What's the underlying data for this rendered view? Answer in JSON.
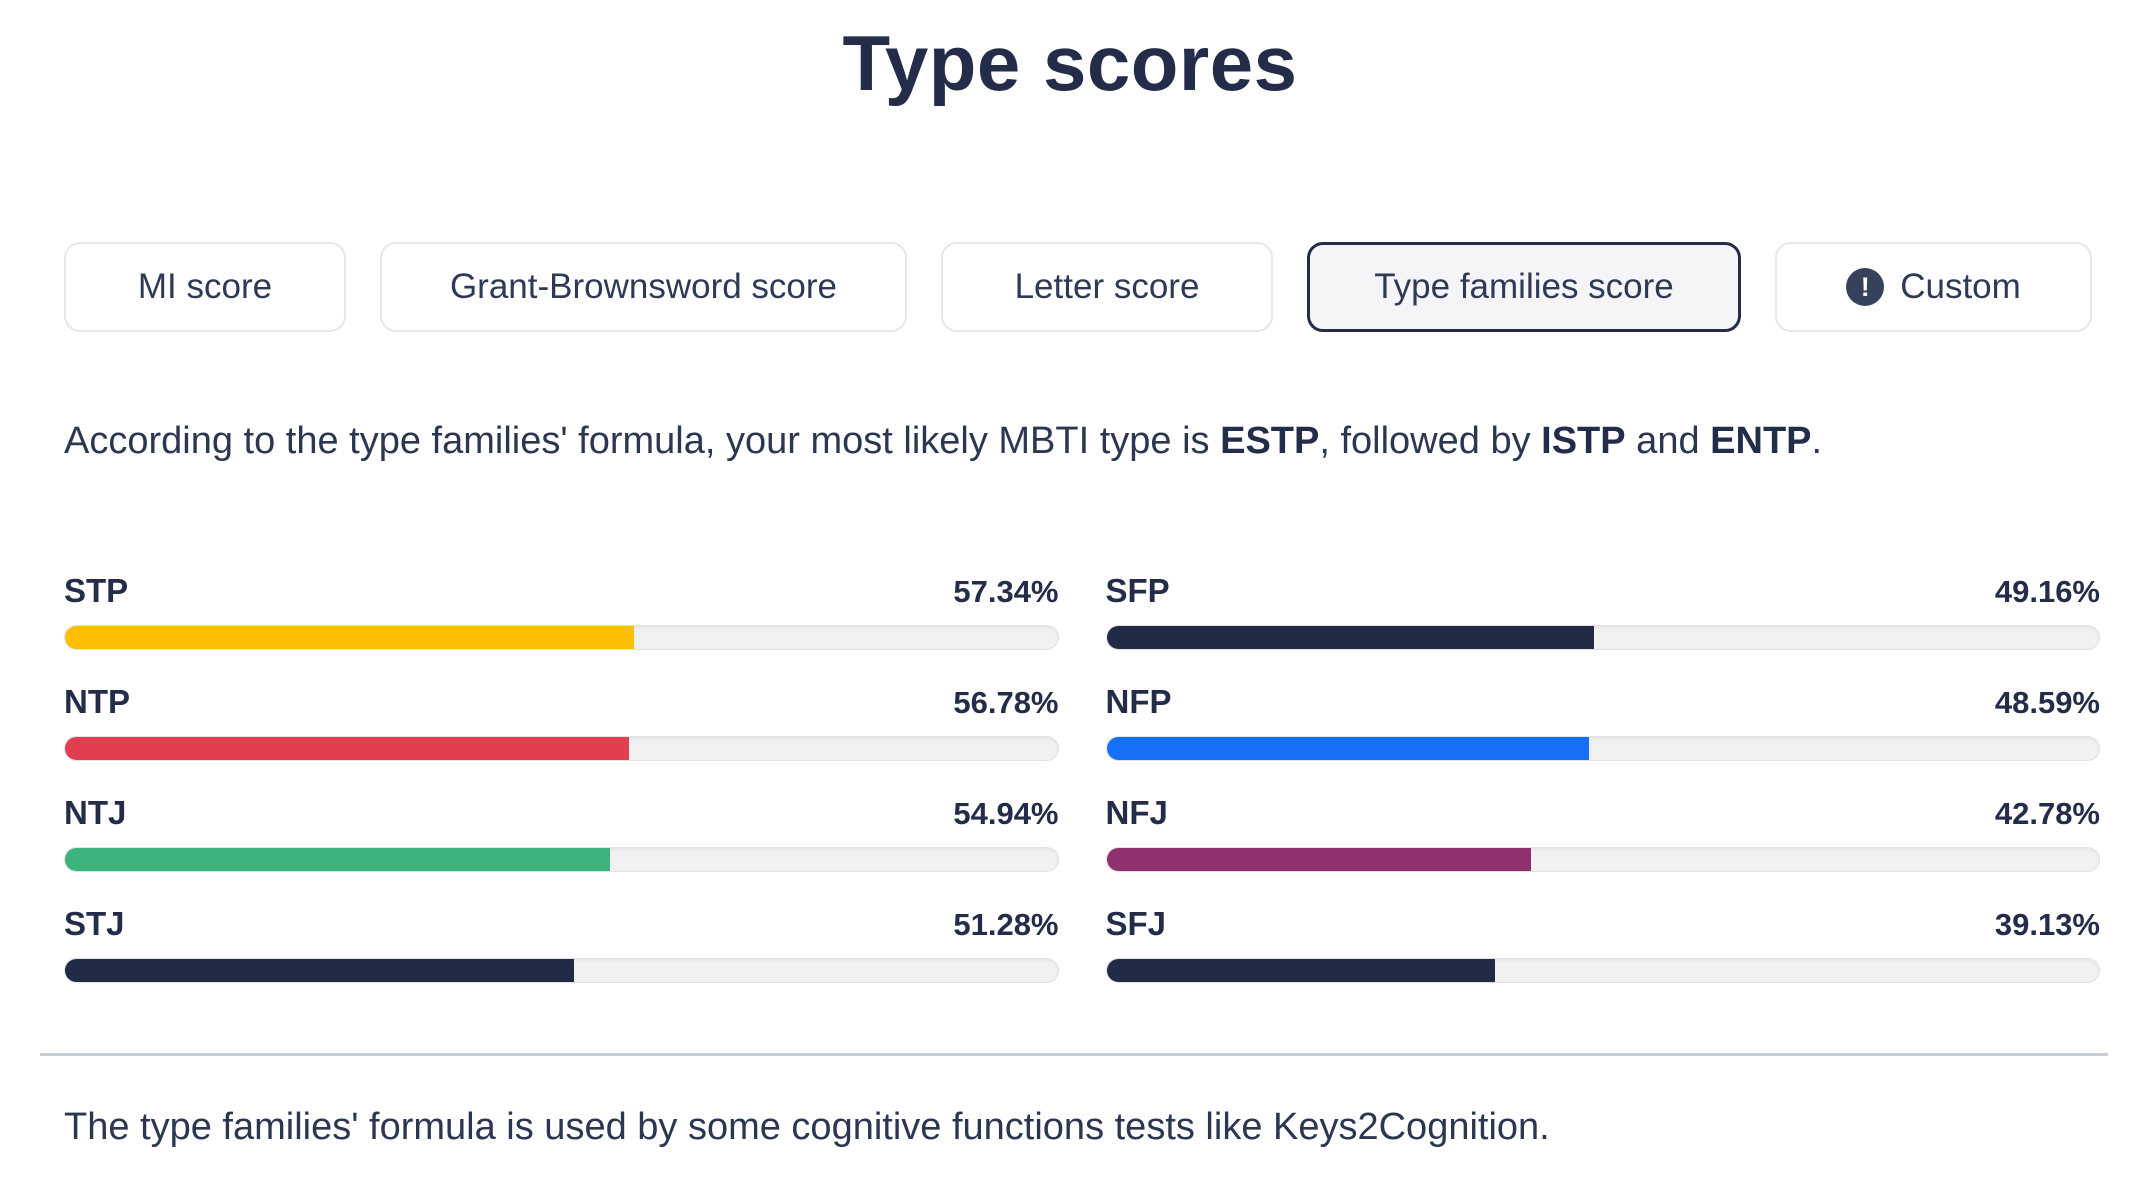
{
  "page": {
    "title": "Type scores"
  },
  "tabs": [
    {
      "label": "MI score",
      "selected": false
    },
    {
      "label": "Grant-Brownsword score",
      "selected": false
    },
    {
      "label": "Letter score",
      "selected": false
    },
    {
      "label": "Type families score",
      "selected": true
    },
    {
      "label": "Custom",
      "selected": false,
      "icon": "exclamation-circle-icon",
      "icon_glyph": "!"
    }
  ],
  "summary": {
    "prefix": "According to the type families' formula, your most likely MBTI type is ",
    "top_type": "ESTP",
    "mid1": ", followed by ",
    "second_type": "ISTP",
    "mid2": " and ",
    "third_type": "ENTP",
    "suffix": "."
  },
  "scores": {
    "left": [
      {
        "label": "STP",
        "percent_label": "57.34%",
        "value": 57.34,
        "color": "#FCBF04"
      },
      {
        "label": "NTP",
        "percent_label": "56.78%",
        "value": 56.78,
        "color": "#E23E4F"
      },
      {
        "label": "NTJ",
        "percent_label": "54.94%",
        "value": 54.94,
        "color": "#3CB27C"
      },
      {
        "label": "STJ",
        "percent_label": "51.28%",
        "value": 51.28,
        "color": "#222B45"
      }
    ],
    "right": [
      {
        "label": "SFP",
        "percent_label": "49.16%",
        "value": 49.16,
        "color": "#222B45"
      },
      {
        "label": "NFP",
        "percent_label": "48.59%",
        "value": 48.59,
        "color": "#156FF7"
      },
      {
        "label": "NFJ",
        "percent_label": "42.78%",
        "value": 42.78,
        "color": "#8F306F"
      },
      {
        "label": "SFJ",
        "percent_label": "39.13%",
        "value": 39.13,
        "color": "#222B45"
      }
    ]
  },
  "colors": {
    "heading_text": "#232D49",
    "body_text": "#2B3650",
    "tab_border": "#E4E8EE",
    "selected_tab_border": "#232D49",
    "selected_tab_bg": "#F5F5F7",
    "track_bg": "#F1F1F2",
    "divider": "#C9CED5"
  },
  "footer": {
    "note": "The type families' formula is used by some cognitive functions tests like Keys2Cognition."
  }
}
